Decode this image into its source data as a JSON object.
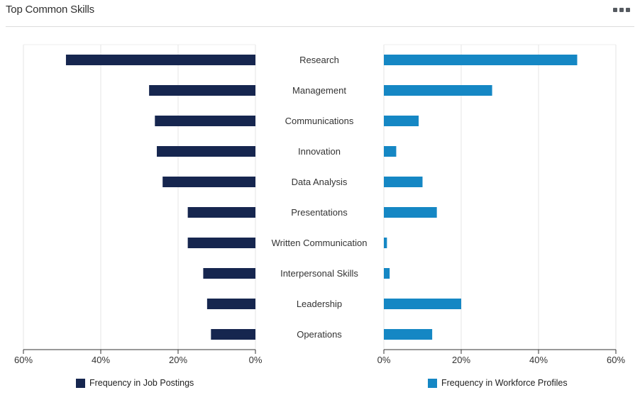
{
  "header": {
    "title": "Top Common Skills",
    "menu_icon": "more-horizontal-icon"
  },
  "colors": {
    "job_postings": "#16264f",
    "workforce_profiles": "#1587c4",
    "grid": "#e6e6e6",
    "axis": "#333333"
  },
  "chart_data": {
    "type": "bar",
    "orientation": "horizontal-butterfly",
    "categories": [
      "Research",
      "Management",
      "Communications",
      "Innovation",
      "Data Analysis",
      "Presentations",
      "Written Communication",
      "Interpersonal Skills",
      "Leadership",
      "Operations"
    ],
    "series": [
      {
        "name": "Frequency in Job Postings",
        "side": "left",
        "values": [
          49,
          27.5,
          26,
          25.5,
          24,
          17.5,
          17.5,
          13.5,
          12.5,
          11.5
        ]
      },
      {
        "name": "Frequency in Workforce Profiles",
        "side": "right",
        "values": [
          50,
          28,
          9,
          3.2,
          10,
          13.7,
          0.8,
          1.5,
          20,
          12.5
        ]
      }
    ],
    "xlim": [
      0,
      60
    ],
    "left_ticks": [
      "60%",
      "40%",
      "20%",
      "0%"
    ],
    "right_ticks": [
      "0%",
      "20%",
      "40%",
      "60%"
    ],
    "tick_values": [
      0,
      20,
      40,
      60
    ],
    "grid": true,
    "legend_position": "bottom"
  }
}
